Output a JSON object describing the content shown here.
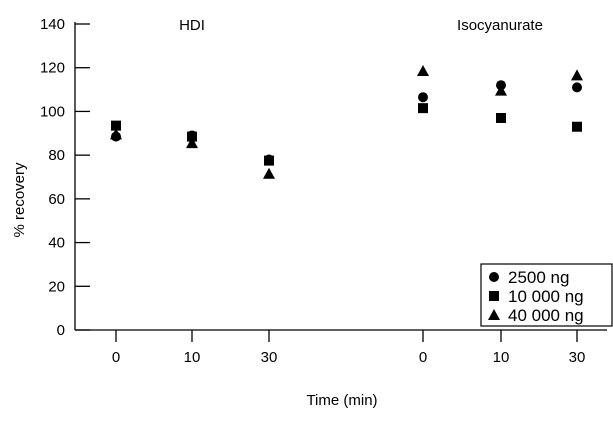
{
  "chart_data": {
    "type": "scatter",
    "xlabel": "Time (min)",
    "ylabel": "% recovery",
    "ylim": [
      0,
      140
    ],
    "yticks": [
      0,
      20,
      40,
      60,
      80,
      100,
      120,
      140
    ],
    "grid": false,
    "legend_position": "bottom-right",
    "groups": [
      {
        "label": "HDI",
        "x": [
          "0",
          "10",
          "30"
        ]
      },
      {
        "label": "Isocyanurate",
        "x": [
          "0",
          "10",
          "30"
        ]
      }
    ],
    "series": [
      {
        "name": "2500 ng",
        "marker": "circle",
        "color": "#000000",
        "values": [
          [
            88.5,
            89,
            78
          ],
          [
            106.5,
            112,
            111
          ]
        ]
      },
      {
        "name": "10 000 ng",
        "marker": "square",
        "color": "#000000",
        "values": [
          [
            93.5,
            88.5,
            77.5
          ],
          [
            101.5,
            97,
            93
          ]
        ]
      },
      {
        "name": "40 000 ng",
        "marker": "triangle",
        "color": "#000000",
        "values": [
          [
            89.5,
            85.5,
            71.5
          ],
          [
            118.5,
            109.5,
            116.5
          ]
        ]
      }
    ]
  }
}
